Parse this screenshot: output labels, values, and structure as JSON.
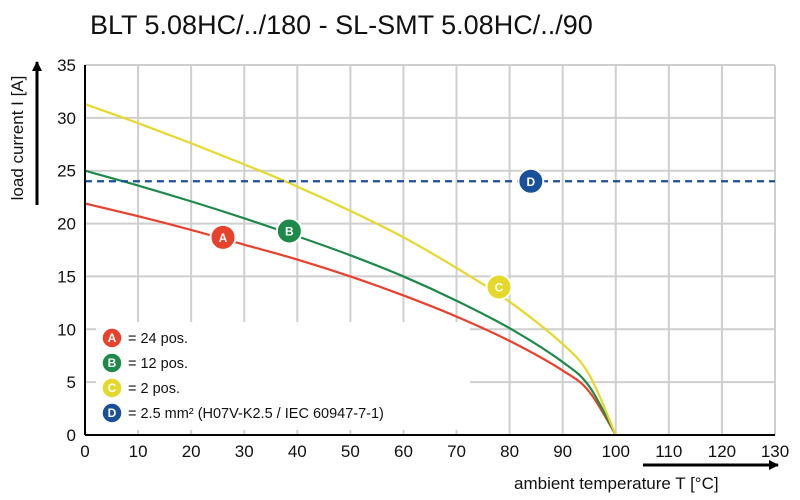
{
  "chart_data": {
    "type": "line",
    "title": "BLT 5.08HC/../180 - SL-SMT 5.08HC/../90",
    "xlabel": "ambient temperature T [°C]",
    "ylabel": "load current I [A]",
    "xlim": [
      0,
      130
    ],
    "ylim": [
      0,
      35
    ],
    "xticks": [
      "0",
      "10",
      "20",
      "30",
      "40",
      "50",
      "60",
      "70",
      "80",
      "90",
      "100",
      "110",
      "120",
      "130"
    ],
    "yticks": [
      "0",
      "5",
      "10",
      "15",
      "20",
      "25",
      "30",
      "35"
    ],
    "grid": true,
    "series": [
      {
        "name": "A",
        "legend": "= 24 pos.",
        "color": "#e8412c",
        "style": "solid",
        "x": [
          0,
          10,
          20,
          30,
          40,
          50,
          60,
          70,
          80,
          90,
          95,
          100
        ],
        "y": [
          21.9,
          20.7,
          19.4,
          18.0,
          16.6,
          15.0,
          13.2,
          11.2,
          8.9,
          6.1,
          4.1,
          0
        ]
      },
      {
        "name": "B",
        "legend": "= 12 pos.",
        "color": "#1e8a4a",
        "style": "solid",
        "x": [
          0,
          10,
          20,
          30,
          40,
          50,
          60,
          70,
          80,
          90,
          95,
          100
        ],
        "y": [
          25.0,
          23.6,
          22.1,
          20.5,
          18.8,
          17.0,
          15.0,
          12.7,
          10.1,
          6.9,
          4.6,
          0
        ]
      },
      {
        "name": "C",
        "legend": "= 2 pos.",
        "color": "#e6d82a",
        "style": "solid",
        "x": [
          0,
          10,
          20,
          30,
          40,
          50,
          60,
          70,
          80,
          90,
          95,
          100
        ],
        "y": [
          31.3,
          29.5,
          27.6,
          25.6,
          23.5,
          21.2,
          18.7,
          15.8,
          12.6,
          8.6,
          5.7,
          0
        ]
      },
      {
        "name": "D",
        "legend": "= 2.5 mm² (H07V-K2.5 / IEC 60947-7-1)",
        "color": "#1a4f9c",
        "style": "dashed",
        "x": [
          0,
          130
        ],
        "y": [
          24,
          24
        ]
      }
    ],
    "badges": [
      {
        "label": "A",
        "x": 26,
        "y": 18.7
      },
      {
        "label": "B",
        "x": 38.5,
        "y": 19.3
      },
      {
        "label": "C",
        "x": 78,
        "y": 14.0
      },
      {
        "label": "D",
        "x": 84,
        "y": 24.0
      }
    ]
  }
}
